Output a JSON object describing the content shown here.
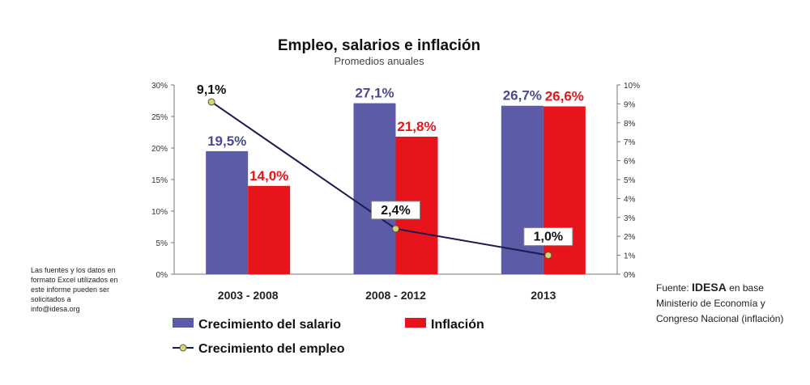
{
  "chart_data": {
    "type": "bar",
    "title": "Empleo, salarios e inflación",
    "subtitle": "Promedios anuales",
    "categories": [
      "2003 - 2008",
      "2008 - 2012",
      "2013"
    ],
    "series": [
      {
        "name": "Crecimiento del salario",
        "type": "bar",
        "axis": "left",
        "color": "#5b5ba8",
        "values": [
          19.5,
          27.1,
          26.7
        ],
        "labels": [
          "19,5%",
          "27,1%",
          "26,7%"
        ]
      },
      {
        "name": "Inflación",
        "type": "bar",
        "axis": "left",
        "color": "#e8141c",
        "values": [
          14.0,
          21.8,
          26.6
        ],
        "labels": [
          "14,0%",
          "21,8%",
          "26,6%"
        ]
      },
      {
        "name": "Crecimiento del empleo",
        "type": "line",
        "axis": "right",
        "color": "#1a1a50",
        "values": [
          9.1,
          2.4,
          1.0
        ],
        "labels": [
          "9,1%",
          "2,4%",
          "1,0%"
        ]
      }
    ],
    "y_left": {
      "min": 0,
      "max": 30,
      "ticks": [
        "0%",
        "5%",
        "10%",
        "15%",
        "20%",
        "25%",
        "30%"
      ]
    },
    "y_right": {
      "min": 0,
      "max": 10,
      "ticks": [
        "0%",
        "1%",
        "2%",
        "3%",
        "4%",
        "5%",
        "6%",
        "7%",
        "8%",
        "9%",
        "10%"
      ]
    },
    "legend": "bottom",
    "grid": false
  },
  "notes": {
    "left": "Las fuentes y los datos en formato Excel utilizados en este informe pueden ser solicitados a info@idesa.org",
    "source_prefix": "Fuente:",
    "source_org": "IDESA",
    "source_suffix": "en base Ministerio de Economía y Congreso Nacional (inflación)"
  }
}
